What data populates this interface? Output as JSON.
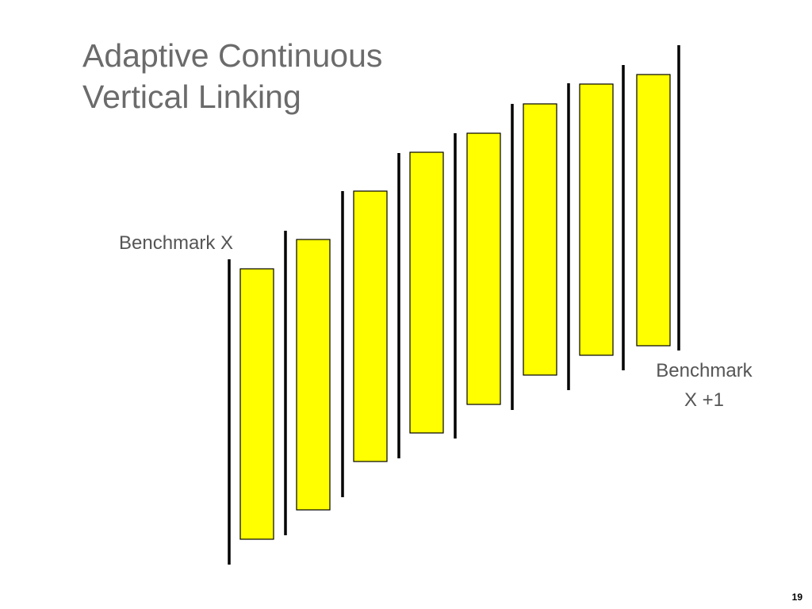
{
  "slide": {
    "title_line1": "Adaptive Continuous",
    "title_line2": "Vertical Linking",
    "page_number": "19"
  },
  "labels": {
    "benchmark_x": "Benchmark X",
    "benchmark_x1_line1": "Benchmark",
    "benchmark_x1_line2": "X +1"
  },
  "diagram": {
    "bar_count": 8,
    "divider_count": 9,
    "bar_fill": "#ffff00",
    "bar_stroke": "#000000",
    "divider_color": "#000000"
  }
}
